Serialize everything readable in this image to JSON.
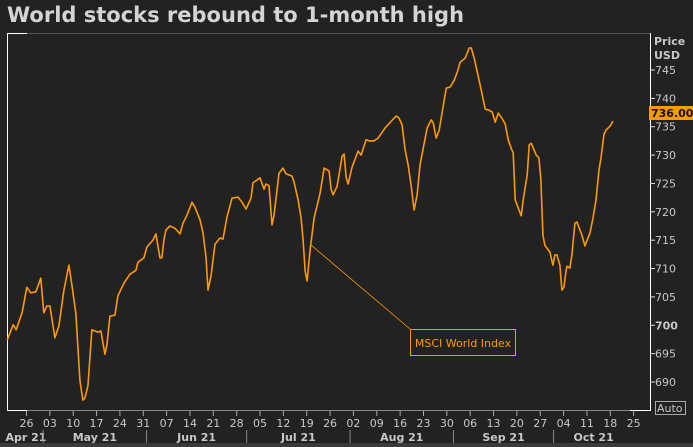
{
  "title": "World stocks rebound to 1-month high",
  "chart_data": {
    "type": "line",
    "title": "World stocks rebound to 1-month high",
    "x_unit": "days since 2021-04-26",
    "xlim": [
      -6,
      187
    ],
    "ylim": [
      683,
      750
    ],
    "y_axis_title": [
      "Price",
      "USD"
    ],
    "y_ticks": [
      690,
      695,
      700,
      705,
      710,
      715,
      720,
      725,
      730,
      735,
      740,
      745
    ],
    "y_tick_labels": [
      "690",
      "695",
      "700",
      "705",
      "710",
      "715",
      "720",
      "725",
      "730",
      "735",
      "740",
      "745"
    ],
    "x_ticks": [
      0,
      7,
      14,
      21,
      28,
      35,
      42,
      49,
      56,
      63,
      70,
      77,
      84,
      91,
      98,
      105,
      112,
      119,
      126,
      133,
      140,
      147,
      154,
      161,
      168,
      175,
      182
    ],
    "x_tick_labels": [
      "26",
      "03",
      "10",
      "17",
      "24",
      "31",
      "07",
      "14",
      "21",
      "28",
      "05",
      "12",
      "19",
      "26",
      "02",
      "09",
      "16",
      "23",
      "30",
      "06",
      "13",
      "20",
      "27",
      "04",
      "11",
      "18",
      "25"
    ],
    "months": [
      {
        "label": "Apr 21",
        "start": -6,
        "end": 5
      },
      {
        "label": "May 21",
        "start": 5,
        "end": 36
      },
      {
        "label": "Jun 21",
        "start": 36,
        "end": 66
      },
      {
        "label": "Jul 21",
        "start": 66,
        "end": 97
      },
      {
        "label": "Aug 21",
        "start": 97,
        "end": 128
      },
      {
        "label": "Sep 21",
        "start": 128,
        "end": 158
      },
      {
        "label": "Oct 21",
        "start": 158,
        "end": 187
      }
    ],
    "series": [
      {
        "name": "MSCI World Index",
        "color": "#ff9900",
        "points": [
          [
            -5.8,
            697.4
          ],
          [
            -4.0,
            700.1
          ],
          [
            -3.1,
            699.2
          ],
          [
            -1.3,
            702.3
          ],
          [
            0.1,
            706.7
          ],
          [
            1.3,
            705.7
          ],
          [
            2.8,
            705.9
          ],
          [
            4.3,
            708.3
          ],
          [
            5.2,
            702.2
          ],
          [
            6.1,
            703.4
          ],
          [
            7.0,
            703.4
          ],
          [
            8.5,
            697.8
          ],
          [
            9.7,
            699.9
          ],
          [
            11.2,
            706.2
          ],
          [
            12.7,
            710.6
          ],
          [
            13.6,
            707.1
          ],
          [
            14.8,
            702.0
          ],
          [
            16.0,
            690.3
          ],
          [
            16.9,
            686.8
          ],
          [
            17.5,
            687.2
          ],
          [
            18.4,
            689.3
          ],
          [
            19.6,
            699.2
          ],
          [
            21.4,
            698.8
          ],
          [
            22.3,
            699.0
          ],
          [
            23.5,
            694.9
          ],
          [
            24.1,
            696.5
          ],
          [
            25.0,
            701.6
          ],
          [
            26.5,
            701.8
          ],
          [
            27.4,
            705.2
          ],
          [
            29.2,
            707.4
          ],
          [
            31.0,
            709.0
          ],
          [
            32.8,
            709.7
          ],
          [
            33.4,
            711.1
          ],
          [
            35.2,
            711.9
          ],
          [
            36.1,
            713.8
          ],
          [
            37.9,
            715.0
          ],
          [
            38.8,
            716.1
          ],
          [
            40.0,
            711.9
          ],
          [
            40.6,
            711.9
          ],
          [
            41.2,
            715.0
          ],
          [
            41.8,
            716.8
          ],
          [
            43.0,
            717.5
          ],
          [
            44.5,
            717.1
          ],
          [
            46.0,
            716.1
          ],
          [
            46.9,
            718.0
          ],
          [
            48.1,
            719.4
          ],
          [
            49.6,
            721.7
          ],
          [
            50.5,
            720.8
          ],
          [
            52.0,
            718.6
          ],
          [
            52.9,
            716.3
          ],
          [
            53.8,
            712.0
          ],
          [
            54.4,
            706.2
          ],
          [
            55.3,
            708.7
          ],
          [
            56.5,
            714.3
          ],
          [
            58.0,
            715.4
          ],
          [
            58.9,
            715.2
          ],
          [
            60.1,
            719.1
          ],
          [
            61.6,
            722.4
          ],
          [
            63.4,
            722.6
          ],
          [
            64.6,
            721.7
          ],
          [
            65.8,
            720.5
          ],
          [
            67.3,
            722.4
          ],
          [
            67.9,
            725.1
          ],
          [
            70.0,
            726.0
          ],
          [
            71.2,
            724.0
          ],
          [
            71.8,
            724.9
          ],
          [
            72.7,
            724.6
          ],
          [
            73.6,
            717.7
          ],
          [
            74.2,
            719.4
          ],
          [
            75.1,
            723.8
          ],
          [
            75.7,
            726.8
          ],
          [
            76.9,
            727.7
          ],
          [
            77.8,
            726.7
          ],
          [
            79.6,
            726.3
          ],
          [
            80.2,
            725.3
          ],
          [
            81.4,
            722.1
          ],
          [
            82.3,
            718.9
          ],
          [
            82.9,
            715.0
          ],
          [
            83.5,
            709.6
          ],
          [
            84.1,
            707.8
          ],
          [
            85.0,
            713.3
          ],
          [
            86.2,
            718.9
          ],
          [
            88.0,
            723.3
          ],
          [
            89.2,
            727.7
          ],
          [
            90.7,
            727.2
          ],
          [
            91.3,
            724.0
          ],
          [
            91.9,
            723.0
          ],
          [
            93.1,
            724.5
          ],
          [
            94.6,
            729.8
          ],
          [
            95.2,
            730.2
          ],
          [
            95.8,
            726.1
          ],
          [
            96.4,
            724.9
          ],
          [
            97.6,
            727.9
          ],
          [
            99.4,
            730.7
          ],
          [
            100.3,
            730.0
          ],
          [
            101.8,
            732.7
          ],
          [
            102.7,
            732.5
          ],
          [
            104.2,
            732.5
          ],
          [
            105.4,
            733.0
          ],
          [
            107.5,
            734.8
          ],
          [
            110.8,
            736.9
          ],
          [
            111.7,
            736.5
          ],
          [
            112.6,
            735.3
          ],
          [
            113.5,
            730.9
          ],
          [
            114.4,
            728.3
          ],
          [
            115.3,
            724.7
          ],
          [
            116.2,
            720.3
          ],
          [
            117.1,
            723.0
          ],
          [
            118.0,
            728.3
          ],
          [
            118.9,
            731.2
          ],
          [
            120.1,
            734.8
          ],
          [
            121.3,
            736.2
          ],
          [
            121.9,
            735.7
          ],
          [
            122.8,
            733.0
          ],
          [
            123.7,
            734.4
          ],
          [
            124.6,
            737.6
          ],
          [
            125.8,
            741.8
          ],
          [
            127.0,
            742.0
          ],
          [
            128.2,
            743.2
          ],
          [
            129.1,
            744.6
          ],
          [
            130.0,
            746.4
          ],
          [
            131.5,
            747.1
          ],
          [
            132.7,
            748.9
          ],
          [
            133.3,
            748.9
          ],
          [
            134.2,
            747.1
          ],
          [
            135.4,
            743.9
          ],
          [
            136.3,
            741.5
          ],
          [
            137.5,
            738.1
          ],
          [
            138.7,
            737.9
          ],
          [
            139.6,
            737.6
          ],
          [
            140.5,
            735.8
          ],
          [
            141.4,
            737.4
          ],
          [
            142.3,
            736.7
          ],
          [
            143.5,
            735.5
          ],
          [
            144.4,
            732.7
          ],
          [
            145.3,
            731.2
          ],
          [
            145.9,
            730.4
          ],
          [
            146.5,
            722.1
          ],
          [
            146.8,
            721.6
          ],
          [
            148.3,
            719.3
          ],
          [
            148.9,
            722.1
          ],
          [
            150.1,
            726.5
          ],
          [
            150.7,
            731.8
          ],
          [
            151.3,
            732.1
          ],
          [
            152.8,
            730.0
          ],
          [
            153.6,
            729.5
          ],
          [
            154.2,
            725.6
          ],
          [
            154.8,
            715.9
          ],
          [
            155.4,
            714.1
          ],
          [
            156.9,
            712.9
          ],
          [
            157.8,
            710.6
          ],
          [
            158.4,
            712.4
          ],
          [
            159.0,
            712.4
          ],
          [
            159.9,
            710.6
          ],
          [
            160.5,
            706.2
          ],
          [
            161.1,
            706.7
          ],
          [
            161.7,
            709.4
          ],
          [
            162.0,
            710.4
          ],
          [
            162.9,
            710.1
          ],
          [
            163.5,
            712.4
          ],
          [
            164.4,
            718.0
          ],
          [
            165.0,
            718.2
          ],
          [
            166.5,
            715.9
          ],
          [
            167.4,
            714.0
          ],
          [
            168.9,
            716.3
          ],
          [
            169.8,
            718.9
          ],
          [
            170.7,
            722.1
          ],
          [
            171.6,
            727.4
          ],
          [
            172.2,
            729.5
          ],
          [
            173.1,
            733.7
          ],
          [
            173.7,
            734.4
          ],
          [
            174.9,
            735.1
          ],
          [
            175.8,
            736.0
          ]
        ]
      }
    ],
    "last_price_label": "736.00",
    "annotation": {
      "text": "MSCI World Index",
      "x": 84.1,
      "y": 707.8
    },
    "auto_label": "Auto",
    "grid": false,
    "legend": "none"
  },
  "colors": {
    "background": "#222222",
    "line": "#ff9900",
    "frame": "#ffffff",
    "text": "#c8c8c8"
  }
}
